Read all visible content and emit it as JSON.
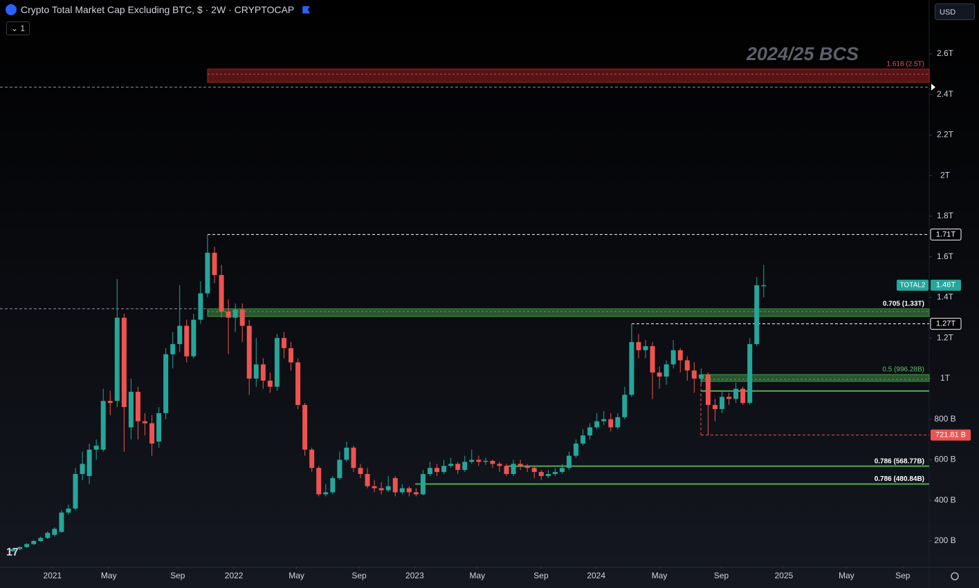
{
  "header": {
    "title": "Crypto Total Market Cap Excluding BTC, $ · 2W · CRYPTOCAP",
    "interval_badge": "1",
    "currency": "USD"
  },
  "chart_data": {
    "type": "candlestick",
    "annotation": "2024/25 BCS",
    "up_color": "#26a69a",
    "down_color": "#ef5350",
    "open": [
      150,
      160,
      170,
      185,
      200,
      215,
      230,
      245,
      340,
      360,
      530,
      520,
      650,
      650,
      890,
      890,
      1300,
      760,
      935,
      790,
      780,
      690,
      830,
      1120,
      1170,
      1260,
      1110,
      1290,
      1420,
      1620,
      1510,
      1330,
      1300,
      1340,
      1260,
      1000,
      1070,
      990,
      960,
      1200,
      1150,
      1080,
      870,
      650,
      560,
      430,
      440,
      510,
      600,
      660,
      560,
      530,
      470,
      460,
      450,
      510,
      440,
      460,
      440,
      430,
      530,
      560,
      540,
      570,
      580,
      550,
      590,
      600,
      590,
      595,
      580,
      570,
      530,
      580,
      570,
      560,
      540,
      520,
      530,
      540,
      560,
      620,
      680,
      720,
      760,
      790,
      800,
      760,
      810,
      920,
      1180,
      1140,
      1160,
      1030,
      1010,
      1070,
      1140,
      1090,
      1040,
      1000,
      1020,
      870,
      850,
      910,
      900,
      950,
      880,
      1170,
      1455
    ],
    "high": [
      163,
      174,
      190,
      206,
      222,
      248,
      268,
      352,
      380,
      560,
      640,
      680,
      700,
      950,
      940,
      1490,
      1320,
      1000,
      960,
      830,
      820,
      860,
      1150,
      1230,
      1460,
      1290,
      1320,
      1480,
      1710,
      1650,
      1560,
      1390,
      1370,
      1370,
      1290,
      1200,
      1100,
      1030,
      1220,
      1230,
      1180,
      1100,
      880,
      660,
      570,
      480,
      520,
      640,
      690,
      670,
      580,
      560,
      500,
      490,
      520,
      520,
      480,
      470,
      460,
      550,
      590,
      580,
      600,
      610,
      590,
      620,
      650,
      620,
      610,
      600,
      590,
      580,
      600,
      600,
      580,
      570,
      550,
      550,
      560,
      580,
      640,
      700,
      750,
      780,
      830,
      840,
      830,
      830,
      960,
      1270,
      1220,
      1190,
      1180,
      1060,
      1090,
      1190,
      1150,
      1110,
      1080,
      1050,
      1030,
      900,
      940,
      930,
      980,
      960,
      1200,
      1500,
      1560
    ],
    "low": [
      146,
      156,
      166,
      180,
      195,
      210,
      222,
      240,
      330,
      350,
      500,
      480,
      600,
      640,
      820,
      860,
      640,
      700,
      700,
      720,
      620,
      660,
      800,
      1050,
      1130,
      1080,
      1100,
      1270,
      1400,
      1470,
      1300,
      1120,
      1230,
      1180,
      920,
      960,
      950,
      930,
      940,
      1100,
      1040,
      850,
      620,
      540,
      420,
      420,
      430,
      500,
      590,
      540,
      510,
      460,
      440,
      430,
      440,
      420,
      430,
      420,
      420,
      425,
      520,
      520,
      530,
      560,
      530,
      540,
      580,
      570,
      575,
      560,
      540,
      520,
      520,
      550,
      540,
      510,
      500,
      510,
      520,
      530,
      550,
      610,
      670,
      700,
      750,
      770,
      740,
      750,
      800,
      910,
      1100,
      1100,
      900,
      950,
      970,
      1050,
      1030,
      990,
      930,
      970,
      722,
      790,
      830,
      870,
      880,
      870,
      870,
      1160,
      1400
    ],
    "close": [
      160,
      170,
      185,
      200,
      215,
      240,
      260,
      340,
      360,
      530,
      580,
      650,
      670,
      890,
      880,
      1300,
      860,
      935,
      790,
      780,
      680,
      830,
      1120,
      1170,
      1260,
      1110,
      1290,
      1420,
      1620,
      1510,
      1330,
      1300,
      1340,
      1260,
      1000,
      1070,
      990,
      960,
      1200,
      1150,
      1080,
      870,
      650,
      560,
      430,
      440,
      510,
      600,
      660,
      560,
      530,
      470,
      460,
      450,
      470,
      440,
      460,
      440,
      430,
      530,
      560,
      540,
      570,
      580,
      550,
      590,
      600,
      590,
      595,
      580,
      570,
      530,
      580,
      570,
      560,
      540,
      520,
      530,
      540,
      560,
      620,
      680,
      720,
      760,
      790,
      800,
      760,
      810,
      920,
      1180,
      1140,
      1160,
      1030,
      1010,
      1070,
      1140,
      1090,
      1040,
      1000,
      1020,
      870,
      850,
      910,
      900,
      950,
      880,
      1170,
      1460,
      1460
    ],
    "xlim": [
      -1.85,
      131.8
    ],
    "xticks": [
      {
        "value": 5.7,
        "label": "2021"
      },
      {
        "value": 13.8,
        "label": "May"
      },
      {
        "value": 23.7,
        "label": "Sep"
      },
      {
        "value": 31.8,
        "label": "2022"
      },
      {
        "value": 40.8,
        "label": "May"
      },
      {
        "value": 49.8,
        "label": "Sep"
      },
      {
        "value": 57.8,
        "label": "2023"
      },
      {
        "value": 66.8,
        "label": "May"
      },
      {
        "value": 75.97,
        "label": "Sep"
      },
      {
        "value": 83.9,
        "label": "2024"
      },
      {
        "value": 93,
        "label": "May"
      },
      {
        "value": 101.9,
        "label": "Sep"
      },
      {
        "value": 110.9,
        "label": "2025"
      },
      {
        "value": 119.9,
        "label": "May"
      },
      {
        "value": 128,
        "label": "Sep"
      }
    ],
    "ylim": [
      74,
      2763
    ],
    "yticks": [
      {
        "value": 200,
        "label": "200 B"
      },
      {
        "value": 400,
        "label": "400 B"
      },
      {
        "value": 600,
        "label": "600 B"
      },
      {
        "value": 800,
        "label": "800 B"
      },
      {
        "value": 1000,
        "label": "1T"
      },
      {
        "value": 1200,
        "label": "1.2T"
      },
      {
        "value": 1400,
        "label": "1.4T"
      },
      {
        "value": 1600,
        "label": "1.6T"
      },
      {
        "value": 1800,
        "label": "1.8T"
      },
      {
        "value": 2000,
        "label": "2T"
      },
      {
        "value": 2200,
        "label": "2.2T"
      },
      {
        "value": 2400,
        "label": "2.4T"
      },
      {
        "value": 2600,
        "label": "2.6T"
      }
    ],
    "grid": false,
    "fib_levels": [
      {
        "label": "1.618 (2.5T)",
        "value": 2500,
        "zone": [
          2460,
          2525
        ],
        "color": "#c62828"
      },
      {
        "label": "0.705 (1.33T)",
        "value": 1330,
        "zone": [
          1306,
          1344
        ],
        "color": "#4caf50"
      },
      {
        "label": "0.5 (996.28B)",
        "value": 996.28,
        "zone": [
          986,
          1020
        ],
        "color": "#4caf50"
      },
      {
        "label": "0.786 (568.77B)",
        "value": 568.77,
        "color": "#4caf50"
      },
      {
        "label": "0.786 (480.84B)",
        "value": 480.84,
        "color": "#4caf50"
      }
    ],
    "hlines": [
      {
        "value": 2436,
        "style": "dashed",
        "color": "#9598a1"
      },
      {
        "value": 1344,
        "style": "dashed",
        "color": "#9598a1"
      },
      {
        "value": 939,
        "style": "solid",
        "color": "#4caf50"
      }
    ],
    "price_labels": [
      {
        "value": 1710,
        "label": "1.71T",
        "style": "outline"
      },
      {
        "value": 1270,
        "label": "1.27T",
        "style": "outline"
      },
      {
        "value": 721.81,
        "label": "721.81 B",
        "style": "red"
      },
      {
        "value": 1460,
        "label": "1.46T",
        "style": "last",
        "name": "TOTAL2"
      }
    ]
  }
}
